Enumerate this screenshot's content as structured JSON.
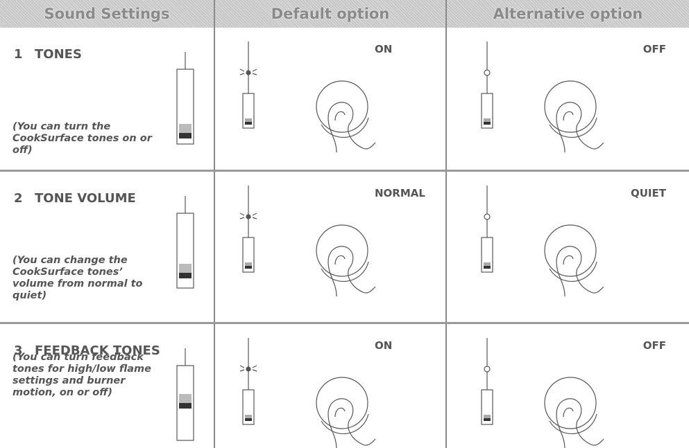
{
  "table": {
    "header": [
      "Sound Settings",
      "Default option",
      "Alternative option"
    ],
    "rows": [
      {
        "number": "1",
        "name": "TONES",
        "description": "(You can turn the CookSurface tones on or off)",
        "default": "ON",
        "alternative": "OFF"
      },
      {
        "number": "2",
        "name": "TONE VOLUME",
        "description": "(You can change the CookSurface tones’ volume from normal to quiet)",
        "default": "NORMAL",
        "alternative": "QUIET"
      },
      {
        "number": "3",
        "name": "FEEDBACK TONES",
        "description": "(You can turn feedback tones for high/low flame settings and burner motion, on or off)",
        "default": "ON",
        "alternative": "OFF"
      }
    ]
  }
}
